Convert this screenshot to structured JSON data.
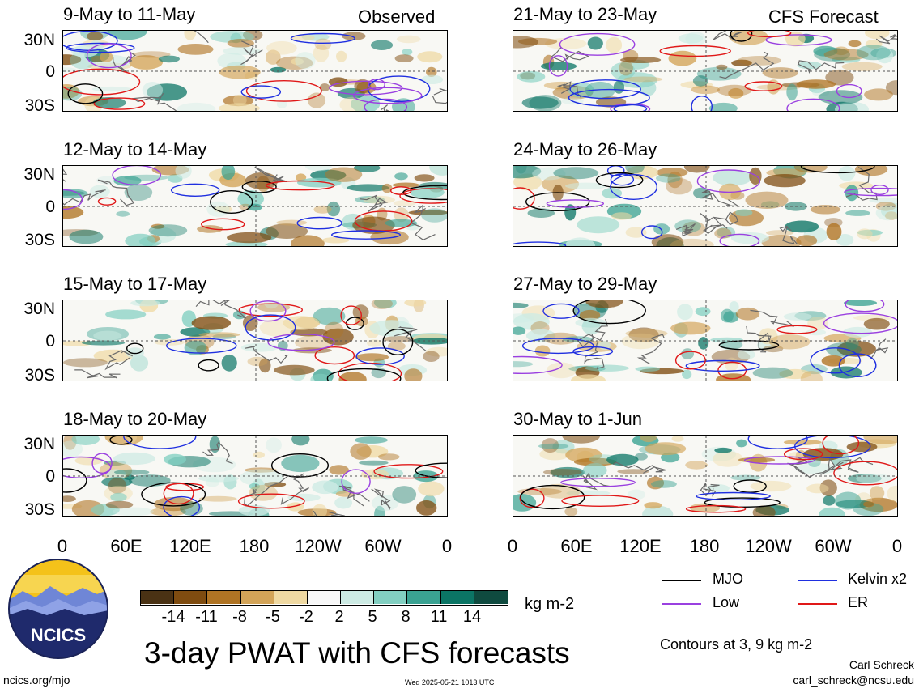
{
  "header": {
    "left": "Observed",
    "right": "CFS Forecast"
  },
  "panels": {
    "left": [
      {
        "title": "9-May to 11-May"
      },
      {
        "title": "12-May to 14-May"
      },
      {
        "title": "15-May to 17-May"
      },
      {
        "title": "18-May to 20-May"
      }
    ],
    "right": [
      {
        "title": "21-May to 23-May"
      },
      {
        "title": "24-May to 26-May"
      },
      {
        "title": "27-May to 29-May"
      },
      {
        "title": "30-May to 1-Jun"
      }
    ]
  },
  "lat_labels": [
    "30N",
    "0",
    "30S"
  ],
  "lon_labels": [
    "0",
    "60E",
    "120E",
    "180",
    "120W",
    "60W",
    "0"
  ],
  "colorbar": {
    "unit": "kg m-2",
    "ticks": [
      "-14",
      "-11",
      "-8",
      "-5",
      "-2",
      "2",
      "5",
      "8",
      "11",
      "14"
    ],
    "colors": [
      "#4a3214",
      "#7f4c10",
      "#b07424",
      "#d3a458",
      "#efd9a2",
      "#f7f7f7",
      "#cdebe4",
      "#82cfc1",
      "#3aa292",
      "#0b7565",
      "#0f4a3f"
    ]
  },
  "legend": {
    "items": [
      {
        "label": "MJO",
        "color": "#000000"
      },
      {
        "label": "Kelvin x2",
        "color": "#1f2fe0"
      },
      {
        "label": "Low",
        "color": "#9a40e0"
      },
      {
        "label": "ER",
        "color": "#e01818"
      }
    ],
    "contours_note": "Contours at 3, 9 kg m-2"
  },
  "logo_text": "NCICS",
  "main_title": "3-day PWAT with CFS forecasts",
  "footer": {
    "left": "ncics.org/mjo",
    "center": "Wed 2025-05-21 1013 UTC",
    "author": "Carl Schreck",
    "email": "carl_schreck@ncsu.edu"
  }
}
